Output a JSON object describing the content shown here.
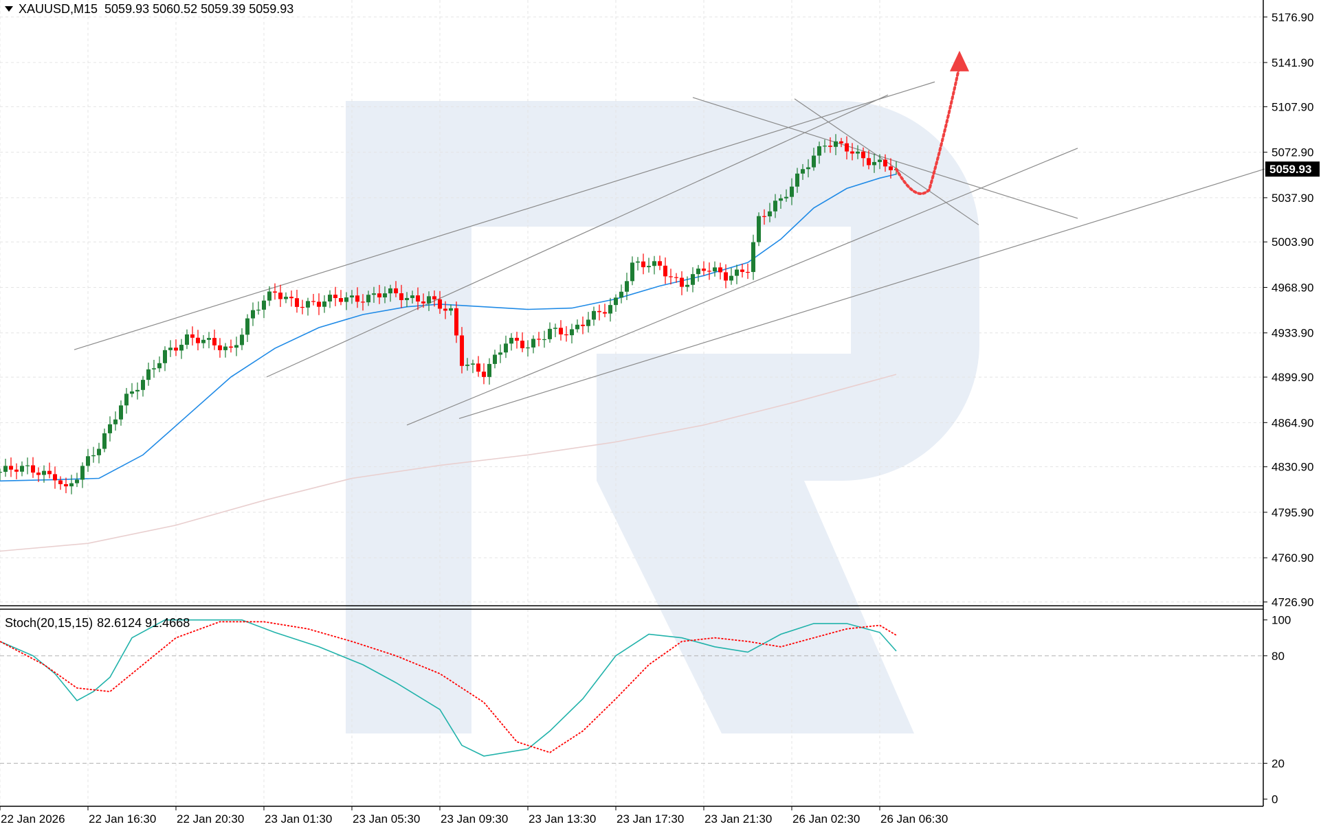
{
  "header": {
    "symbol_label": "XAUUSD,M15",
    "ohlc": "5059.93 5060.52 5059.39 5059.93"
  },
  "indicator": {
    "label": "Stoch(20,15,15)",
    "values": "82.6124 91.4668"
  },
  "current_price_label": "5059.93",
  "colors": {
    "bull": "#1e7e34",
    "bear": "#ff0000",
    "ma_fast": "#1f8ae6",
    "ma_slow": "#e9cfcf",
    "stoch_main": "#20b2aa",
    "stoch_signal": "#ff0000",
    "trendline": "#8a8a8a",
    "forecast_arrow": "#f04040",
    "watermark": "#e8eef6"
  },
  "chart_data": [
    {
      "type": "candlestick",
      "symbol": "XAUUSD",
      "timeframe": "M15",
      "y_ticks": [
        5176.9,
        5141.9,
        5107.9,
        5072.9,
        5037.9,
        5003.9,
        4968.9,
        4933.9,
        4899.9,
        4864.9,
        4830.9,
        4795.9,
        4760.9,
        4726.9
      ],
      "ylim": [
        4724,
        5190
      ],
      "x_ticks": [
        "22 Jan 2026",
        "22 Jan 16:30",
        "22 Jan 20:30",
        "23 Jan 01:30",
        "23 Jan 05:30",
        "23 Jan 09:30",
        "23 Jan 13:30",
        "23 Jan 17:30",
        "23 Jan 21:30",
        "26 Jan 02:30",
        "26 Jan 06:30"
      ],
      "x_tick_bars": [
        0,
        16,
        32,
        48,
        64,
        80,
        96,
        112,
        128,
        144,
        160
      ],
      "close_path": [
        [
          0,
          4827
        ],
        [
          6,
          4829
        ],
        [
          10,
          4825
        ],
        [
          12,
          4812
        ],
        [
          14,
          4822
        ],
        [
          18,
          4848
        ],
        [
          22,
          4880
        ],
        [
          26,
          4895
        ],
        [
          30,
          4920
        ],
        [
          34,
          4930
        ],
        [
          38,
          4925
        ],
        [
          42,
          4922
        ],
        [
          46,
          4950
        ],
        [
          50,
          4964
        ],
        [
          54,
          4958
        ],
        [
          58,
          4956
        ],
        [
          62,
          4960
        ],
        [
          66,
          4962
        ],
        [
          70,
          4964
        ],
        [
          74,
          4960
        ],
        [
          78,
          4962
        ],
        [
          82,
          4948
        ],
        [
          84,
          4910
        ],
        [
          88,
          4905
        ],
        [
          92,
          4927
        ],
        [
          96,
          4922
        ],
        [
          100,
          4938
        ],
        [
          104,
          4933
        ],
        [
          108,
          4947
        ],
        [
          112,
          4960
        ],
        [
          115,
          4985
        ],
        [
          120,
          4985
        ],
        [
          124,
          4972
        ],
        [
          128,
          4982
        ],
        [
          132,
          4978
        ],
        [
          136,
          4985
        ],
        [
          138,
          5020
        ],
        [
          142,
          5035
        ],
        [
          146,
          5062
        ],
        [
          150,
          5078
        ],
        [
          154,
          5076
        ],
        [
          158,
          5068
        ],
        [
          162,
          5060
        ],
        [
          163,
          5059.93
        ]
      ],
      "ma_fast": [
        [
          0,
          4820
        ],
        [
          10,
          4821
        ],
        [
          18,
          4822
        ],
        [
          26,
          4840
        ],
        [
          34,
          4870
        ],
        [
          42,
          4900
        ],
        [
          50,
          4922
        ],
        [
          58,
          4938
        ],
        [
          66,
          4948
        ],
        [
          74,
          4954
        ],
        [
          80,
          4956
        ],
        [
          88,
          4954
        ],
        [
          96,
          4952
        ],
        [
          104,
          4953
        ],
        [
          112,
          4960
        ],
        [
          120,
          4970
        ],
        [
          128,
          4978
        ],
        [
          136,
          4988
        ],
        [
          142,
          5006
        ],
        [
          148,
          5030
        ],
        [
          154,
          5045
        ],
        [
          160,
          5053
        ],
        [
          163,
          5056
        ]
      ],
      "ma_slow": [
        [
          0,
          4766
        ],
        [
          16,
          4772
        ],
        [
          32,
          4786
        ],
        [
          48,
          4805
        ],
        [
          64,
          4822
        ],
        [
          80,
          4832
        ],
        [
          96,
          4840
        ],
        [
          112,
          4850
        ],
        [
          128,
          4863
        ],
        [
          144,
          4880
        ],
        [
          163,
          4902
        ]
      ],
      "trendlines": [
        {
          "from": [
            13.5,
            4921
          ],
          "to": [
            170,
            5127
          ]
        },
        {
          "from": [
            48.5,
            4900
          ],
          "to": [
            161.5,
            5117
          ]
        },
        {
          "from": [
            74,
            4863
          ],
          "to": [
            196,
            5076
          ]
        },
        {
          "from": [
            83.5,
            4868
          ],
          "to": [
            230,
            5060
          ]
        },
        {
          "from": [
            126,
            5115
          ],
          "to": [
            196,
            5022
          ]
        },
        {
          "from": [
            144.5,
            5114
          ],
          "to": [
            178,
            5017
          ]
        }
      ],
      "forecast": [
        [
          163,
          5059.93
        ],
        [
          166.5,
          5043
        ],
        [
          169,
          5044
        ],
        [
          171.5,
          5085
        ],
        [
          174.5,
          5151
        ]
      ]
    },
    {
      "type": "line",
      "indicator": "Stochastic",
      "params": "20,15,15",
      "y_ticks": [
        100,
        80,
        20,
        0
      ],
      "levels": [
        80,
        20
      ],
      "ylim": [
        -4,
        106
      ],
      "series": [
        {
          "values": [
            [
              0,
              88
            ],
            [
              6,
              80
            ],
            [
              10,
              70
            ],
            [
              14,
              55
            ],
            [
              17,
              60
            ],
            [
              20,
              68
            ],
            [
              24,
              90
            ],
            [
              30,
              100
            ],
            [
              44,
              100
            ],
            [
              50,
              93
            ],
            [
              58,
              85
            ],
            [
              66,
              75
            ],
            [
              72,
              65
            ],
            [
              80,
              50
            ],
            [
              84,
              30
            ],
            [
              88,
              24
            ],
            [
              96,
              28
            ],
            [
              100,
              38
            ],
            [
              106,
              56
            ],
            [
              112,
              80
            ],
            [
              118,
              92
            ],
            [
              124,
              90
            ],
            [
              130,
              85
            ],
            [
              136,
              82
            ],
            [
              142,
              92
            ],
            [
              148,
              98
            ],
            [
              154,
              98
            ],
            [
              160,
              93
            ],
            [
              163,
              82.6124
            ]
          ]
        },
        {
          "values": [
            [
              0,
              88
            ],
            [
              8,
              75
            ],
            [
              14,
              62
            ],
            [
              20,
              60
            ],
            [
              24,
              70
            ],
            [
              32,
              90
            ],
            [
              40,
              99
            ],
            [
              48,
              99
            ],
            [
              56,
              95
            ],
            [
              64,
              88
            ],
            [
              72,
              80
            ],
            [
              80,
              70
            ],
            [
              88,
              54
            ],
            [
              94,
              32
            ],
            [
              100,
              26
            ],
            [
              106,
              38
            ],
            [
              112,
              56
            ],
            [
              118,
              75
            ],
            [
              124,
              88
            ],
            [
              130,
              90
            ],
            [
              136,
              88
            ],
            [
              142,
              85
            ],
            [
              148,
              90
            ],
            [
              154,
              95
            ],
            [
              160,
              97
            ],
            [
              163,
              91.4668
            ]
          ]
        }
      ]
    }
  ]
}
